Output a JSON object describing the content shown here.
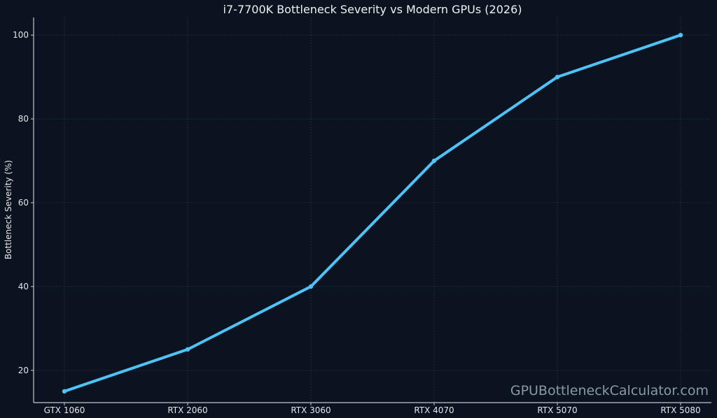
{
  "chart_data": {
    "type": "line",
    "title": "i7-7700K Bottleneck Severity vs Modern GPUs (2026)",
    "xlabel": "",
    "ylabel": "Bottleneck Severity (%)",
    "categories": [
      "GTX 1060",
      "RTX 2060",
      "RTX 3060",
      "RTX 4070",
      "RTX 5070",
      "RTX 5080"
    ],
    "values": [
      15,
      25,
      40,
      70,
      90,
      100
    ],
    "yticks": [
      20,
      40,
      60,
      80,
      100
    ],
    "ylim": [
      12.3,
      104.2
    ],
    "grid": true,
    "line_color": "#4fc3f7",
    "background": "#0b1320",
    "watermark": "GPUBottleneckCalculator.com"
  }
}
